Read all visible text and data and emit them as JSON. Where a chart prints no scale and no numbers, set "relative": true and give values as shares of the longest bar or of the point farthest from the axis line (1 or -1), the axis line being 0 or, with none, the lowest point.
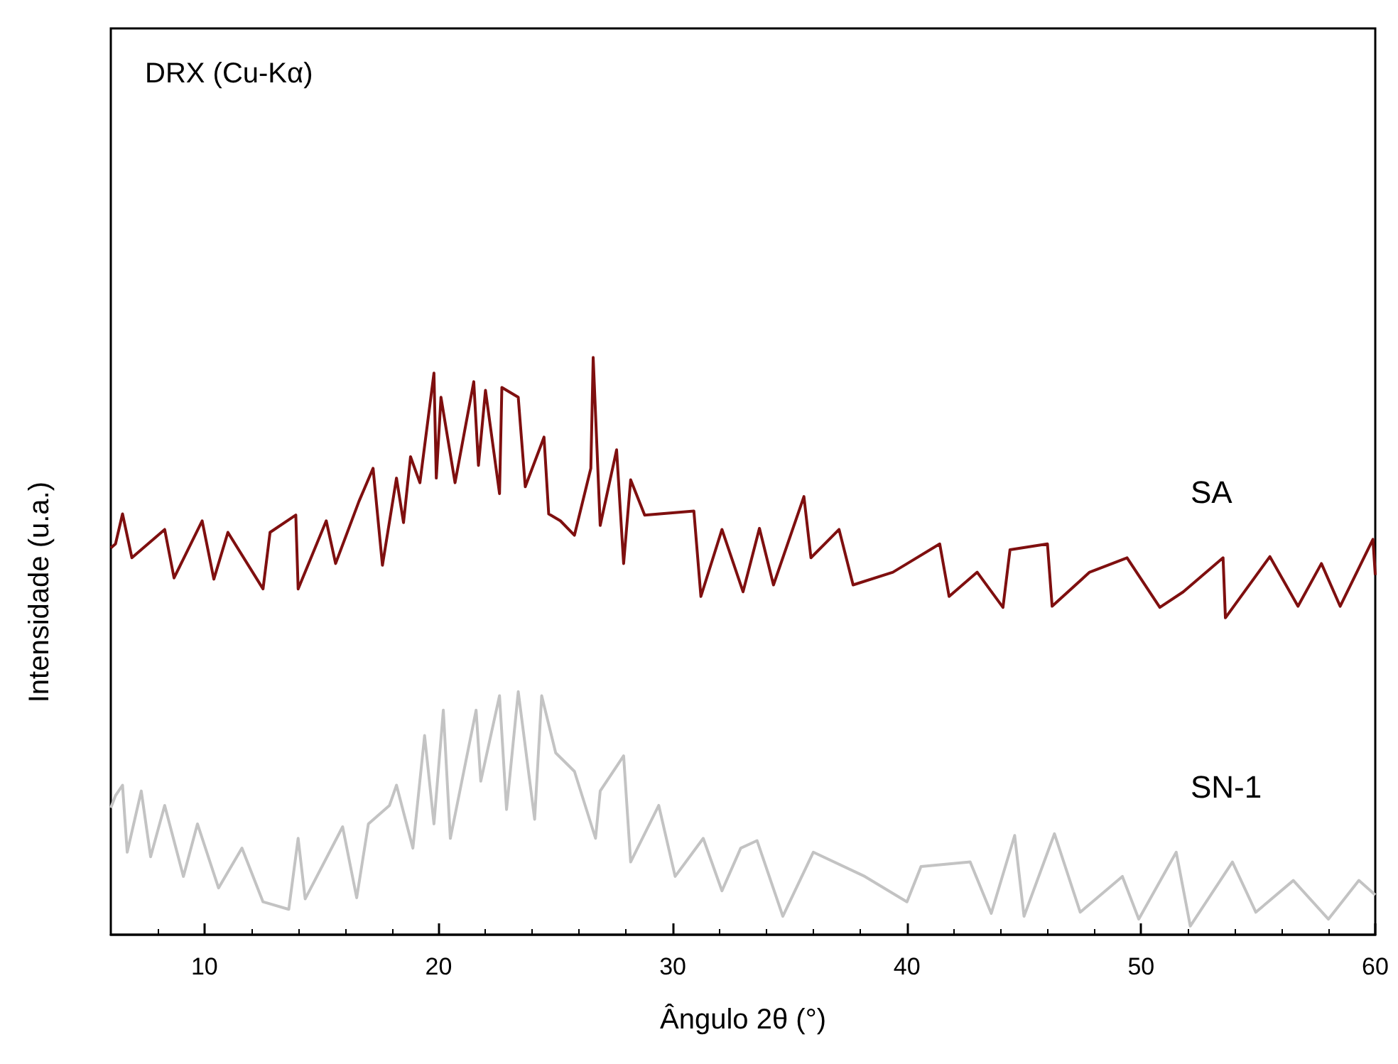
{
  "chart_data": {
    "type": "line",
    "relative": true,
    "xlabel": "Ângulo 2θ (°)",
    "ylabel": "Intensidade (u.a.)",
    "annotations": [
      "DRX (Cu-Kα)"
    ],
    "xlim": [
      6,
      60
    ],
    "xticks": [
      10,
      20,
      30,
      40,
      50,
      60
    ],
    "grid": false,
    "legend": false,
    "series": [
      {
        "name": "SA",
        "color": "#7f0f0f",
        "x": [
          6,
          6.2,
          6.5,
          6.9,
          8.3,
          8.7,
          9.9,
          10.4,
          11.0,
          12.5,
          12.8,
          13.9,
          14.0,
          15.2,
          15.6,
          16.6,
          17.2,
          17.6,
          18.2,
          18.5,
          18.8,
          19.2,
          19.8,
          19.9,
          20.1,
          20.7,
          21.5,
          21.7,
          22.0,
          22.6,
          22.7,
          23.4,
          23.7,
          24.5,
          24.7,
          25.2,
          25.8,
          26.5,
          26.6,
          26.9,
          27.6,
          27.9,
          28.2,
          28.8,
          30.9,
          31.2,
          32.1,
          33.0,
          33.7,
          34.3,
          35.6,
          35.9,
          37.1,
          37.7,
          39.4,
          41.4,
          41.8,
          43.0,
          44.1,
          44.4,
          46.0,
          46.2,
          47.8,
          49.4,
          50.8,
          51.8,
          53.5,
          53.6,
          55.5,
          56.7,
          57.7,
          58.5,
          59.9,
          60
        ],
        "values": [
          0.67,
          0.677,
          0.729,
          0.653,
          0.702,
          0.618,
          0.717,
          0.616,
          0.697,
          0.599,
          0.697,
          0.727,
          0.599,
          0.717,
          0.643,
          0.751,
          0.808,
          0.64,
          0.791,
          0.714,
          0.828,
          0.783,
          0.973,
          0.791,
          0.931,
          0.783,
          0.958,
          0.813,
          0.943,
          0.764,
          0.948,
          0.931,
          0.776,
          0.862,
          0.729,
          0.717,
          0.692,
          0.808,
          1.0,
          0.709,
          0.84,
          0.643,
          0.788,
          0.727,
          0.734,
          0.586,
          0.702,
          0.594,
          0.704,
          0.606,
          0.759,
          0.653,
          0.702,
          0.606,
          0.628,
          0.677,
          0.586,
          0.628,
          0.567,
          0.667,
          0.677,
          0.569,
          0.628,
          0.653,
          0.567,
          0.594,
          0.653,
          0.549,
          0.655,
          0.569,
          0.643,
          0.569,
          0.685,
          0.623
        ]
      },
      {
        "name": "SN-1",
        "color": "#c3c3c3",
        "x": [
          6,
          6.2,
          6.5,
          6.7,
          7.3,
          7.7,
          8.3,
          9.1,
          9.7,
          10.6,
          11.6,
          12.5,
          13.6,
          14.0,
          14.3,
          15.9,
          16.5,
          17.0,
          17.9,
          18.2,
          18.9,
          19.4,
          19.8,
          20.2,
          20.5,
          21.6,
          21.8,
          22.6,
          22.9,
          23.4,
          24.1,
          24.4,
          25.0,
          25.8,
          26.7,
          26.9,
          27.9,
          28.2,
          29.4,
          30.1,
          31.3,
          32.1,
          32.9,
          33.6,
          34.7,
          36.0,
          38.2,
          40.0,
          40.6,
          42.7,
          43.6,
          44.6,
          45.0,
          46.3,
          47.4,
          49.2,
          49.9,
          51.5,
          52.1,
          53.9,
          54.9,
          56.5,
          58.0,
          59.3,
          60
        ],
        "values": [
          0.22,
          0.241,
          0.259,
          0.143,
          0.249,
          0.135,
          0.224,
          0.101,
          0.192,
          0.081,
          0.15,
          0.057,
          0.044,
          0.167,
          0.062,
          0.187,
          0.064,
          0.192,
          0.224,
          0.259,
          0.15,
          0.345,
          0.192,
          0.389,
          0.167,
          0.389,
          0.266,
          0.414,
          0.217,
          0.421,
          0.2,
          0.414,
          0.315,
          0.283,
          0.167,
          0.249,
          0.31,
          0.126,
          0.224,
          0.101,
          0.167,
          0.076,
          0.15,
          0.163,
          0.032,
          0.143,
          0.101,
          0.057,
          0.118,
          0.126,
          0.037,
          0.172,
          0.032,
          0.175,
          0.039,
          0.101,
          0.027,
          0.143,
          0.015,
          0.126,
          0.039,
          0.094,
          0.027,
          0.094,
          0.069
        ]
      }
    ]
  }
}
